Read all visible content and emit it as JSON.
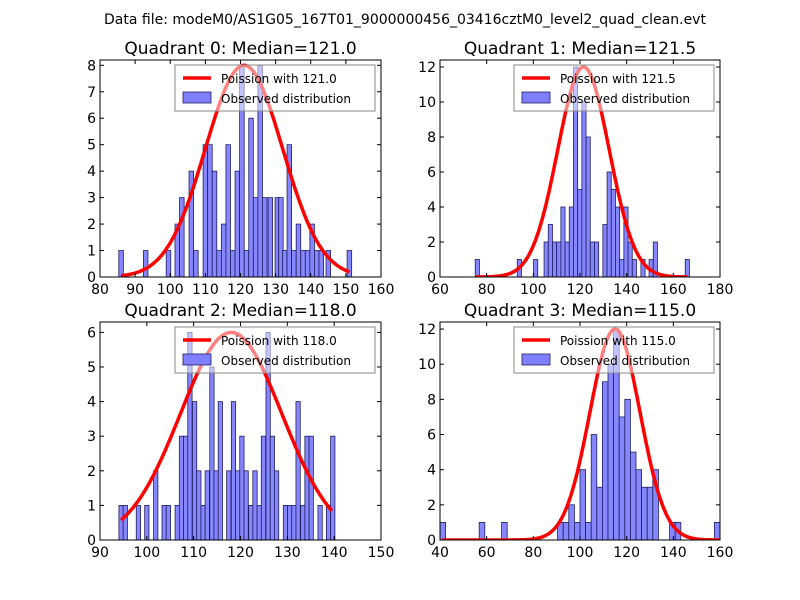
{
  "suptitle": "Data file: modeM0/AS1G05_167T01_9000000456_03416cztM0_level2_quad_clean.evt",
  "colors": {
    "curve": "#ff0000",
    "bar_fill": "#7f7fff",
    "bar_edge": "#1f1f5f"
  },
  "chart_data": [
    {
      "type": "bar",
      "title": "Quadrant 0: Median=121.0",
      "legend": [
        "Poission with 121.0",
        "Observed distribution"
      ],
      "legend_placement": "top-right",
      "xlim": [
        80,
        160
      ],
      "ylim": [
        0,
        8.2
      ],
      "xticks": [
        80,
        90,
        100,
        110,
        120,
        130,
        140,
        150,
        160
      ],
      "yticks": [
        0,
        1,
        2,
        3,
        4,
        5,
        6,
        7,
        8
      ],
      "bin_width": 1.3,
      "bars": [
        [
          86,
          1
        ],
        [
          93,
          1
        ],
        [
          99.5,
          1
        ],
        [
          102,
          2
        ],
        [
          103.3,
          3
        ],
        [
          106,
          4
        ],
        [
          107.3,
          1
        ],
        [
          110,
          5
        ],
        [
          111.3,
          5
        ],
        [
          112.6,
          4
        ],
        [
          113.9,
          1
        ],
        [
          115.2,
          2
        ],
        [
          116.5,
          5
        ],
        [
          117.8,
          1
        ],
        [
          119.1,
          4
        ],
        [
          120.4,
          8
        ],
        [
          121.7,
          1
        ],
        [
          123,
          6
        ],
        [
          124.3,
          3
        ],
        [
          125.6,
          8
        ],
        [
          126.9,
          3
        ],
        [
          128.5,
          3
        ],
        [
          130.5,
          3
        ],
        [
          131.5,
          3
        ],
        [
          132.6,
          1
        ],
        [
          133.9,
          5
        ],
        [
          135.2,
          1
        ],
        [
          136.5,
          2
        ],
        [
          137.8,
          1
        ],
        [
          139.1,
          1
        ],
        [
          140.4,
          2
        ],
        [
          141.7,
          1
        ],
        [
          143,
          1
        ],
        [
          145,
          1
        ],
        [
          151,
          1
        ]
      ],
      "curve_mean": 121.0,
      "curve_peak": 8.0,
      "curve_range": [
        86,
        151
      ]
    },
    {
      "type": "bar",
      "title": "Quadrant 1: Median=121.5",
      "legend": [
        "Poission with 121.5",
        "Observed distribution"
      ],
      "legend_placement": "top-right",
      "xlim": [
        60,
        180
      ],
      "ylim": [
        0,
        12.4
      ],
      "xticks": [
        60,
        80,
        100,
        120,
        140,
        160,
        180
      ],
      "yticks": [
        0,
        2,
        4,
        6,
        8,
        10,
        12
      ],
      "bin_width": 1.8,
      "bars": [
        [
          76,
          1
        ],
        [
          94,
          1
        ],
        [
          101,
          1
        ],
        [
          105.5,
          2
        ],
        [
          107.3,
          3
        ],
        [
          109.1,
          2
        ],
        [
          110.9,
          2
        ],
        [
          112.7,
          4
        ],
        [
          114.5,
          2
        ],
        [
          116.3,
          4
        ],
        [
          118.1,
          12
        ],
        [
          119.9,
          5
        ],
        [
          121.7,
          10
        ],
        [
          123.5,
          8
        ],
        [
          125.3,
          2
        ],
        [
          127.1,
          2
        ],
        [
          130.7,
          3
        ],
        [
          132.5,
          6
        ],
        [
          134.3,
          5
        ],
        [
          136.1,
          4
        ],
        [
          137.9,
          1
        ],
        [
          139.7,
          4
        ],
        [
          141.5,
          2
        ],
        [
          143.3,
          1
        ],
        [
          147,
          1
        ],
        [
          150.5,
          1
        ],
        [
          152.3,
          2
        ],
        [
          166,
          1
        ]
      ],
      "curve_mean": 121.5,
      "curve_peak": 12.0,
      "curve_range": [
        75,
        166
      ]
    },
    {
      "type": "bar",
      "title": "Quadrant 2: Median=118.0",
      "legend": [
        "Poission with 118.0",
        "Observed distribution"
      ],
      "legend_placement": "top-right",
      "xlim": [
        90,
        150
      ],
      "ylim": [
        0,
        6.3
      ],
      "xticks": [
        90,
        100,
        110,
        120,
        130,
        140,
        150
      ],
      "yticks": [
        0,
        1,
        2,
        3,
        4,
        5,
        6
      ],
      "bin_width": 0.92,
      "bars": [
        [
          94.5,
          1
        ],
        [
          95.4,
          1
        ],
        [
          98.2,
          1
        ],
        [
          100,
          1
        ],
        [
          101.9,
          2
        ],
        [
          103.7,
          1
        ],
        [
          104.6,
          1
        ],
        [
          106.5,
          1
        ],
        [
          107.4,
          3
        ],
        [
          108.3,
          3
        ],
        [
          109.2,
          6
        ],
        [
          110.2,
          4
        ],
        [
          111.1,
          2
        ],
        [
          112,
          1
        ],
        [
          112.9,
          2
        ],
        [
          113.9,
          5
        ],
        [
          114.8,
          2
        ],
        [
          115.7,
          4
        ],
        [
          117.5,
          2
        ],
        [
          118.5,
          4
        ],
        [
          119.4,
          2
        ],
        [
          120.3,
          3
        ],
        [
          121.2,
          2
        ],
        [
          122.2,
          1
        ],
        [
          123.1,
          2
        ],
        [
          124,
          1
        ],
        [
          124.9,
          3
        ],
        [
          125.9,
          6
        ],
        [
          126.8,
          3
        ],
        [
          127.7,
          2
        ],
        [
          129.6,
          1
        ],
        [
          130.5,
          1
        ],
        [
          131.4,
          1
        ],
        [
          132.3,
          4
        ],
        [
          133.3,
          1
        ],
        [
          134.2,
          3
        ],
        [
          135.1,
          3
        ],
        [
          137,
          1
        ],
        [
          138.8,
          1
        ],
        [
          139.7,
          3
        ]
      ],
      "curve_mean": 118.0,
      "curve_peak": 6.0,
      "curve_range": [
        94.5,
        139.7
      ]
    },
    {
      "type": "bar",
      "title": "Quadrant 3: Median=115.0",
      "legend": [
        "Poission with 115.0",
        "Observed distribution"
      ],
      "legend_placement": "top-right",
      "xlim": [
        40,
        160
      ],
      "ylim": [
        0,
        12.4
      ],
      "xticks": [
        40,
        60,
        80,
        100,
        120,
        140,
        160
      ],
      "yticks": [
        0,
        2,
        4,
        6,
        8,
        10,
        12
      ],
      "bin_width": 2.4,
      "bars": [
        [
          41.2,
          1
        ],
        [
          58,
          1
        ],
        [
          67.6,
          1
        ],
        [
          91.6,
          1
        ],
        [
          94,
          1
        ],
        [
          96.4,
          2
        ],
        [
          98.8,
          1
        ],
        [
          101.2,
          4
        ],
        [
          103.6,
          1
        ],
        [
          106,
          6
        ],
        [
          108.4,
          3
        ],
        [
          110.8,
          9
        ],
        [
          113.2,
          10
        ],
        [
          115.6,
          12
        ],
        [
          118,
          7
        ],
        [
          120.4,
          8
        ],
        [
          122.8,
          5
        ],
        [
          125.2,
          4
        ],
        [
          127.6,
          3
        ],
        [
          130,
          3
        ],
        [
          132.4,
          4
        ],
        [
          139.6,
          1
        ],
        [
          142,
          1
        ],
        [
          158.8,
          1
        ]
      ],
      "curve_mean": 115.0,
      "curve_peak": 12.0,
      "curve_range": [
        41,
        160
      ]
    }
  ]
}
